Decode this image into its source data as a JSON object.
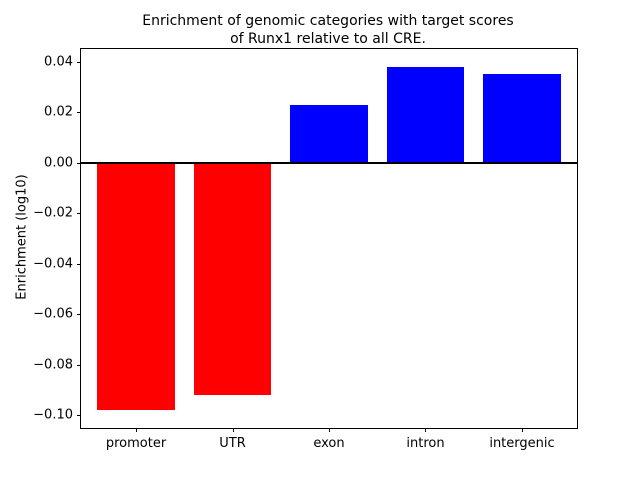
{
  "figure": {
    "background": "#ffffff",
    "axis_color": "#000000"
  },
  "chart_data": {
    "type": "bar",
    "title": "Enrichment of genomic categories with target scores\nof Runx1 relative to all CRE.",
    "title_lines": [
      "Enrichment of genomic categories with target scores",
      "of Runx1 relative to all CRE."
    ],
    "xlabel": "",
    "ylabel": "Enrichment (log10)",
    "categories": [
      "promoter",
      "UTR",
      "exon",
      "intron",
      "intergenic"
    ],
    "values": [
      -0.098,
      -0.092,
      0.023,
      0.038,
      0.035
    ],
    "bar_colors": {
      "positive": "#0000ff",
      "negative": "#ff0000"
    },
    "ylim": [
      -0.105,
      0.045
    ],
    "yticks": [
      0.04,
      0.02,
      0,
      -0.02,
      -0.04,
      -0.06,
      -0.08,
      -0.1
    ],
    "ytick_labels": [
      "0.04",
      "0.02",
      "0.00",
      "−0.02",
      "−0.04",
      "−0.06",
      "−0.08",
      "−0.10"
    ],
    "zero_line_y": 0,
    "bar_width_fraction": 0.8,
    "x_axis_span": [
      -0.57,
      4.57
    ],
    "grid": false,
    "legend": null
  }
}
